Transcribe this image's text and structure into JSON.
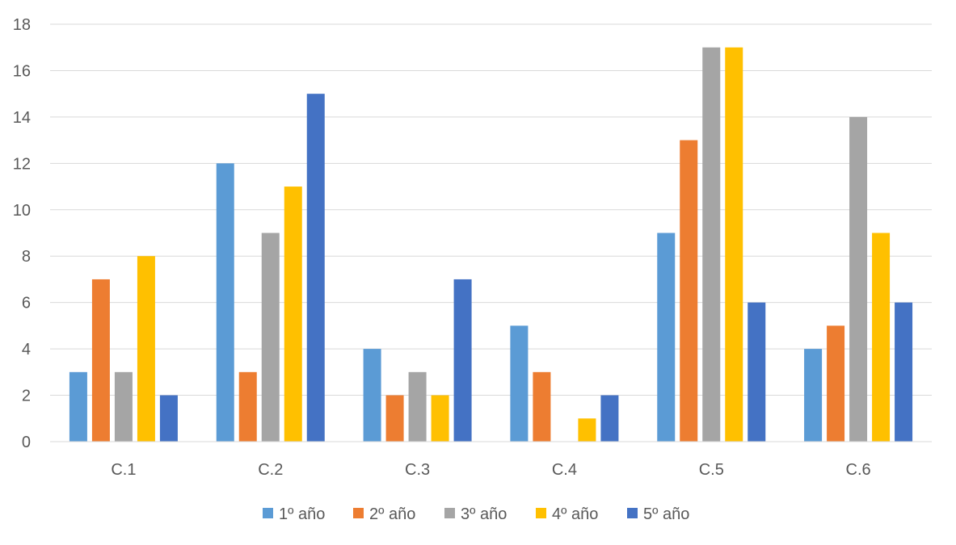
{
  "chart_data": {
    "type": "bar",
    "title": "",
    "xlabel": "",
    "ylabel": "",
    "categories": [
      "C.1",
      "C.2",
      "C.3",
      "C.4",
      "C.5",
      "C.6"
    ],
    "series": [
      {
        "name": "1º año",
        "color": "#5B9BD5",
        "values": [
          3,
          12,
          4,
          5,
          9,
          4
        ]
      },
      {
        "name": "2º año",
        "color": "#ED7D31",
        "values": [
          7,
          3,
          2,
          3,
          13,
          5
        ]
      },
      {
        "name": "3º año",
        "color": "#A5A5A5",
        "values": [
          3,
          9,
          3,
          0,
          17,
          14
        ]
      },
      {
        "name": "4º año",
        "color": "#FFC000",
        "values": [
          8,
          11,
          2,
          1,
          17,
          9
        ]
      },
      {
        "name": "5º año",
        "color": "#4472C4",
        "values": [
          2,
          15,
          7,
          2,
          6,
          6
        ]
      }
    ],
    "ylim": [
      0,
      18
    ],
    "yticks": [
      "0",
      "2",
      "4",
      "6",
      "8",
      "10",
      "12",
      "14",
      "16",
      "18"
    ],
    "grid": true,
    "legend_position": "bottom"
  }
}
